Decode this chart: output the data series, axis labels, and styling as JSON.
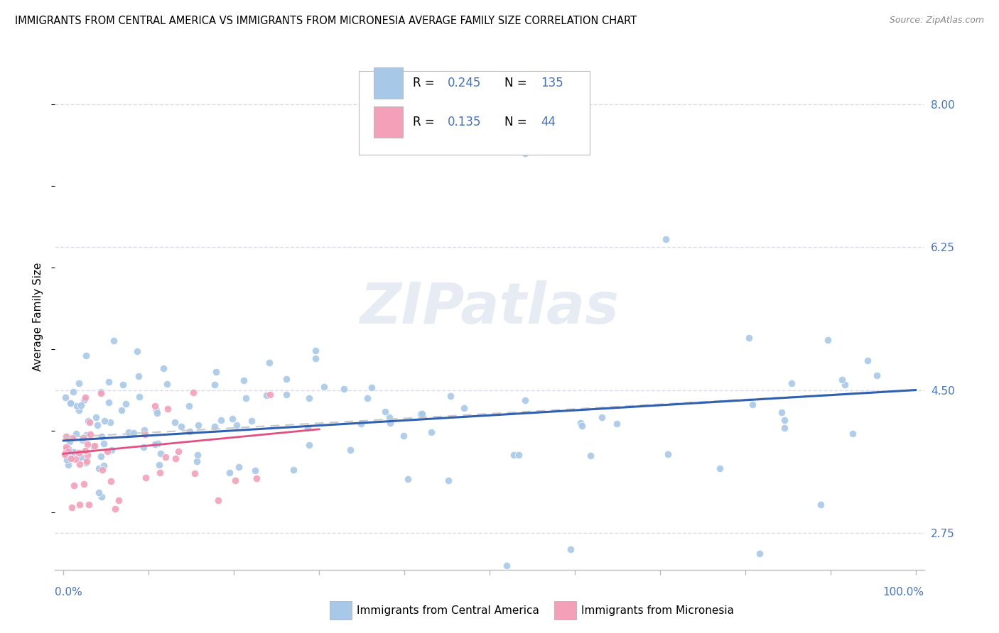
{
  "title": "IMMIGRANTS FROM CENTRAL AMERICA VS IMMIGRANTS FROM MICRONESIA AVERAGE FAMILY SIZE CORRELATION CHART",
  "source": "Source: ZipAtlas.com",
  "ylabel": "Average Family Size",
  "x_legend_label1": "Immigrants from Central America",
  "x_legend_label2": "Immigrants from Micronesia",
  "right_yticks": [
    2.75,
    4.5,
    6.25,
    8.0
  ],
  "color_blue": "#a8c8e8",
  "color_pink": "#f4a0b8",
  "color_blue_line": "#3060b0",
  "color_pink_line": "#e05080",
  "color_dash_line": "#c8c8c8",
  "watermark": "ZIPatlas",
  "background_color": "#ffffff",
  "grid_color": "#d8d8e8",
  "ylim_low": 2.3,
  "ylim_high": 8.5,
  "blue_seed": 42,
  "pink_seed": 7
}
